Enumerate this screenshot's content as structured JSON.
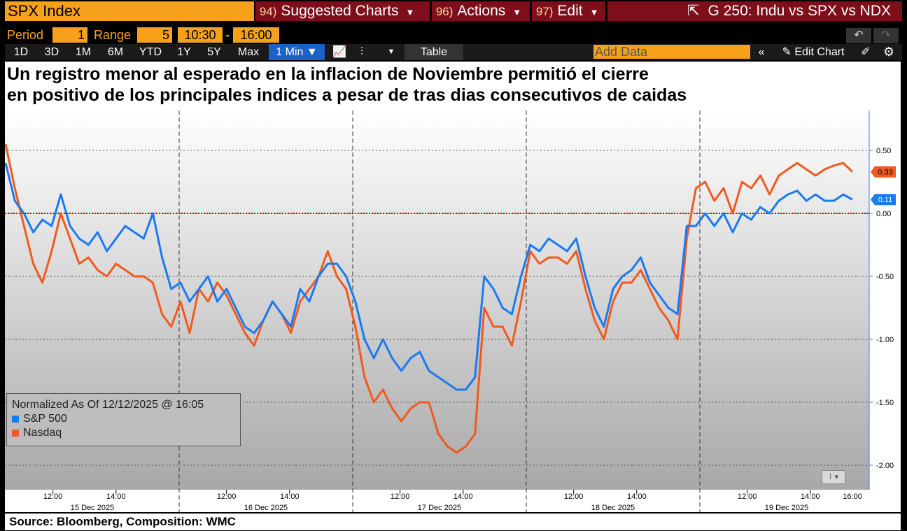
{
  "topbar": {
    "ticker": "SPX Index",
    "menus": [
      {
        "num": "94)",
        "label": "Suggested Charts"
      },
      {
        "num": "96)",
        "label": "Actions"
      },
      {
        "num": "97)",
        "label": "Edit"
      }
    ],
    "chart_title": "G 250: Indu vs SPX vs NDX"
  },
  "period_row": {
    "period_label": "Period",
    "period_value": "1",
    "range_label": "Range",
    "range_value": "5",
    "time_from": "10:30",
    "dash": "-",
    "time_to": "16:00",
    "undo_icon": "↶",
    "redo_icon": "↷"
  },
  "tabs": [
    "1D",
    "3D",
    "1M",
    "6M",
    "YTD",
    "1Y",
    "5Y",
    "Max"
  ],
  "interval": "1 Min ▼",
  "table_label": "Table",
  "add_data_placeholder": "Add Data",
  "edit_chart_label": "Edit Chart",
  "headline": {
    "line1": "Un registro menor al esperado en la inflacion de Noviembre permitió el cierre",
    "line2": "en positivo de los principales indices a pesar de tras dias consecutivos de caidas"
  },
  "legend": {
    "title": "Normalized As Of 12/12/2025 @ 16:05",
    "items": [
      "S&P 500",
      "Nasdaq"
    ]
  },
  "source": "Source: Bloomberg, Composition: WMC",
  "colors": {
    "spx": "#1a7af0",
    "ndx": "#f05a1e",
    "accent": "#f7a11a",
    "menu": "#7d0e1a"
  },
  "chart_data": {
    "type": "line",
    "title": "Un registro menor al esperado en la inflacion de Noviembre permitió el cierre en positivo de los principales indices a pesar de tras dias consecutivos de caidas",
    "ylim": [
      -2.25,
      0.75
    ],
    "yticks": [
      0.5,
      0.0,
      -0.5,
      -1.0,
      -1.5,
      -2.0
    ],
    "ytick_labels": [
      "0.50",
      "0.00",
      "-0.50",
      "-1.00",
      "-1.50",
      "-2.00"
    ],
    "days": [
      "15 Dec 2025",
      "16 Dec 2025",
      "17 Dec 2025",
      "18 Dec 2025",
      "19 Dec 2025"
    ],
    "hour_ticks": [
      "12:00",
      "14:00"
    ],
    "last_hour_tick": "16:00",
    "reference_line": 0.0,
    "last_values": {
      "S&P 500": "0.11",
      "Nasdaq": "0.33"
    },
    "series": [
      {
        "name": "S&P 500",
        "values": [
          0.4,
          0.1,
          0.0,
          -0.15,
          -0.05,
          -0.1,
          0.15,
          -0.1,
          -0.2,
          -0.25,
          -0.15,
          -0.3,
          -0.2,
          -0.1,
          -0.15,
          -0.2,
          0.0,
          -0.35,
          -0.6,
          -0.55,
          -0.7,
          -0.6,
          -0.5,
          -0.7,
          -0.6,
          -0.75,
          -0.9,
          -0.95,
          -0.85,
          -0.7,
          -0.8,
          -0.9,
          -0.6,
          -0.7,
          -0.5,
          -0.4,
          -0.4,
          -0.5,
          -0.7,
          -1.0,
          -1.15,
          -1.0,
          -1.15,
          -1.25,
          -1.15,
          -1.1,
          -1.25,
          -1.3,
          -1.35,
          -1.4,
          -1.4,
          -1.3,
          -0.5,
          -0.6,
          -0.75,
          -0.8,
          -0.5,
          -0.25,
          -0.3,
          -0.2,
          -0.25,
          -0.3,
          -0.2,
          -0.5,
          -0.75,
          -0.9,
          -0.6,
          -0.5,
          -0.45,
          -0.35,
          -0.55,
          -0.65,
          -0.75,
          -0.8,
          -0.1,
          -0.1,
          0.0,
          -0.1,
          0.0,
          -0.15,
          0.0,
          -0.05,
          0.05,
          0.0,
          0.1,
          0.15,
          0.18,
          0.1,
          0.15,
          0.1,
          0.1,
          0.15,
          0.11
        ]
      },
      {
        "name": "Nasdaq",
        "values": [
          0.55,
          0.2,
          -0.1,
          -0.4,
          -0.55,
          -0.3,
          0.0,
          -0.2,
          -0.4,
          -0.35,
          -0.45,
          -0.5,
          -0.4,
          -0.45,
          -0.5,
          -0.5,
          -0.55,
          -0.8,
          -0.9,
          -0.7,
          -0.95,
          -0.6,
          -0.7,
          -0.55,
          -0.65,
          -0.8,
          -0.95,
          -1.05,
          -0.85,
          -0.7,
          -0.8,
          -0.95,
          -0.7,
          -0.6,
          -0.5,
          -0.3,
          -0.5,
          -0.6,
          -0.9,
          -1.3,
          -1.5,
          -1.4,
          -1.55,
          -1.65,
          -1.55,
          -1.5,
          -1.5,
          -1.75,
          -1.85,
          -1.9,
          -1.85,
          -1.75,
          -0.75,
          -0.9,
          -0.9,
          -1.05,
          -0.7,
          -0.3,
          -0.4,
          -0.35,
          -0.35,
          -0.4,
          -0.3,
          -0.6,
          -0.85,
          -1.0,
          -0.7,
          -0.55,
          -0.55,
          -0.45,
          -0.6,
          -0.75,
          -0.85,
          -1.0,
          -0.2,
          0.2,
          0.25,
          0.1,
          0.2,
          0.0,
          0.25,
          0.2,
          0.3,
          0.15,
          0.3,
          0.35,
          0.4,
          0.35,
          0.3,
          0.35,
          0.38,
          0.4,
          0.33
        ]
      }
    ]
  }
}
